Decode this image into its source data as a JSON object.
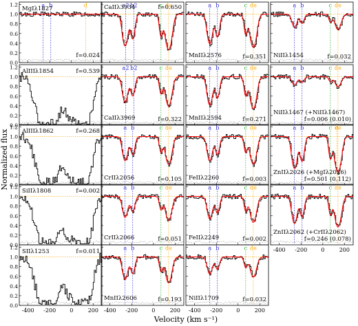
{
  "figure": {
    "xlabel": "Velocity (km s⁻¹)",
    "ylabel": "Normalized flux"
  },
  "colors": {
    "data": "#000000",
    "fit": "#ff0000",
    "comp_a": "#2222cc",
    "comp_b": "#2222cc",
    "comp_c": "#22aa22",
    "comp_d": "#ffa500",
    "comp_e": "#ffa500",
    "continuum": "#ffa500",
    "error": "#666666"
  },
  "chart_data": {
    "type": "line",
    "layout": "grid of absorption-line velocity panels, 4 columns",
    "xlim": [
      -480,
      280
    ],
    "ylim": [
      0.0,
      1.25
    ],
    "x_ticks": [
      -400,
      -200,
      0,
      200
    ],
    "y_ticks": [
      0.0,
      0.2,
      0.4,
      0.6,
      0.8,
      1.0,
      1.2
    ],
    "component_velocities": {
      "a": -260,
      "a2": -255,
      "b": -190,
      "b2": -180,
      "c": 70,
      "d": 130,
      "e": 150
    },
    "panels": [
      {
        "col": 0,
        "row": 0,
        "ion": "MgIλ1827",
        "f": "f=0.024",
        "depth": 0.0,
        "ticks": [
          "a",
          "b",
          "d"
        ],
        "strong": false
      },
      {
        "col": 0,
        "row": 1,
        "ion": "AlIIIλ1854",
        "f": "f=0.539",
        "depth": 0.9,
        "ticks": [],
        "strong": true
      },
      {
        "col": 0,
        "row": 2,
        "ion": "AlIIIλ1862",
        "f": "f=0.268",
        "depth": 0.75,
        "ticks": [],
        "strong": true
      },
      {
        "col": 0,
        "row": 3,
        "ion": "SiIIλ1808",
        "f": "f=0.002",
        "depth": 0.9,
        "ticks": [],
        "strong": true
      },
      {
        "col": 0,
        "row": 4,
        "ion": "SIIλ1253",
        "f": "f=0.011",
        "depth": 0.8,
        "ticks": [],
        "strong": true
      },
      {
        "col": 1,
        "row": 0,
        "ion": "CaIIλ3934",
        "f": "f=0.650",
        "depth": 0.85,
        "ticks": [
          "a2",
          "b2",
          "c",
          "de"
        ],
        "strong": false
      },
      {
        "col": 1,
        "row": 1,
        "ion": "CaIIλ3969",
        "f": "f=0.322",
        "depth": 0.6,
        "ticks": [
          "a2",
          "b2",
          "c",
          "de"
        ],
        "strong": false
      },
      {
        "col": 1,
        "row": 2,
        "ion": "CrIIλ2056",
        "f": "f=0.105",
        "depth": 0.55,
        "ticks": [
          "a",
          "b",
          "c",
          "de"
        ],
        "strong": false
      },
      {
        "col": 1,
        "row": 3,
        "ion": "CrIIλ2066",
        "f": "f=0.051",
        "depth": 0.45,
        "ticks": [
          "a",
          "b",
          "c",
          "de"
        ],
        "strong": false
      },
      {
        "col": 1,
        "row": 4,
        "ion": "MnIIλ2606",
        "f": "f=0.193",
        "depth": 0.5,
        "ticks": [
          "a",
          "b",
          "c",
          "de"
        ],
        "strong": false
      },
      {
        "col": 2,
        "row": 0,
        "ion": "MnIIλ2576",
        "f": "f=0.351",
        "depth": 0.75,
        "ticks": [
          "a",
          "b",
          "c",
          "de"
        ],
        "strong": false
      },
      {
        "col": 2,
        "row": 1,
        "ion": "MnIIλ2594",
        "f": "f=0.271",
        "depth": 0.7,
        "ticks": [
          "a",
          "b",
          "c",
          "de"
        ],
        "strong": false
      },
      {
        "col": 2,
        "row": 2,
        "ion": "FeIIλ2260",
        "f": "f=0.003",
        "depth": 0.55,
        "ticks": [
          "a",
          "b",
          "c",
          "de"
        ],
        "strong": false
      },
      {
        "col": 2,
        "row": 3,
        "ion": "FeIIλ2249",
        "f": "f=0.002",
        "depth": 0.5,
        "ticks": [
          "a",
          "b",
          "c",
          "de"
        ],
        "strong": false
      },
      {
        "col": 2,
        "row": 4,
        "ion": "NiIIλ1709",
        "f": "f=0.032",
        "depth": 0.35,
        "ticks": [
          "a",
          "b",
          "c",
          "de"
        ],
        "strong": false
      },
      {
        "col": 3,
        "row": 0,
        "ion": "NiIIλ1454",
        "f": "f=0.032",
        "depth": 0.25,
        "ticks": [
          "a",
          "b",
          "c",
          "de"
        ],
        "strong": false
      },
      {
        "col": 3,
        "row": 1,
        "ion": "NiIIλ1467 (+NiIIλ1467)",
        "f": "f=0.006 (0.010)",
        "depth": 0.15,
        "ticks": [
          "a",
          "b",
          "c",
          "de"
        ],
        "strong": false
      },
      {
        "col": 3,
        "row": 2,
        "ion": "ZnIIλ2026 (+MgIλ2026)",
        "f": "f=0.501 (0.112)",
        "depth": 0.85,
        "ticks": [
          "a",
          "b",
          "c",
          "de",
          "d"
        ],
        "strong": false
      },
      {
        "col": 3,
        "row": 3,
        "ion": "ZnIIλ2062 (+CrIIλ2062)",
        "f": "f=0.246 (0.078)",
        "depth": 0.65,
        "ticks": [
          "a",
          "b",
          "c",
          "de"
        ],
        "strong": false
      }
    ],
    "bottom_axis_labels": [
      "-400",
      "-200",
      "0",
      "200"
    ],
    "left_axis_labels": [
      "0.0",
      "0.2",
      "0.4",
      "0.6",
      "0.8",
      "1.0",
      "1.2"
    ]
  }
}
